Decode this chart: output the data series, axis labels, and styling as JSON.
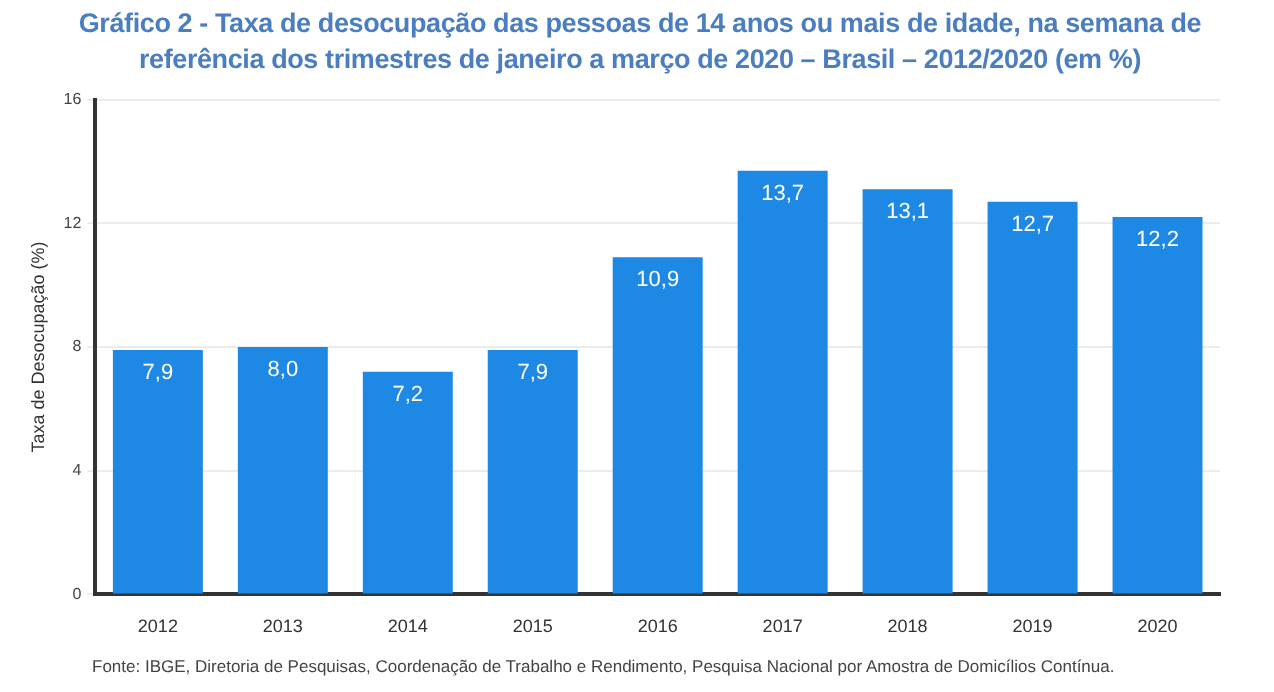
{
  "chart_data": {
    "type": "bar",
    "title": "Gráfico 2 - Taxa de desocupação das pessoas de 14 anos ou mais de idade, na semana de referência dos trimestres de janeiro a março de 2020 – Brasil – 2012/2020 (em %)",
    "ylabel": "Taxa de Desocupação (%)",
    "categories": [
      "2012",
      "2013",
      "2014",
      "2015",
      "2016",
      "2017",
      "2018",
      "2019",
      "2020"
    ],
    "values": [
      7.9,
      8.0,
      7.2,
      7.9,
      10.9,
      13.7,
      13.1,
      12.7,
      12.2
    ],
    "value_labels": [
      "7,9",
      "8,0",
      "7,2",
      "7,9",
      "10,9",
      "13,7",
      "13,1",
      "12,7",
      "12,2"
    ],
    "color": "#1e88e5",
    "ylim": [
      0,
      16
    ],
    "yticks": [
      0,
      4,
      8,
      12,
      16
    ],
    "grid": "y",
    "legend": false,
    "annotations": [
      "Fonte: IBGE, Diretoria de Pesquisas, Coordenação de Trabalho e Rendimento, Pesquisa Nacional por Amostra de Domicílios Contínua."
    ]
  }
}
